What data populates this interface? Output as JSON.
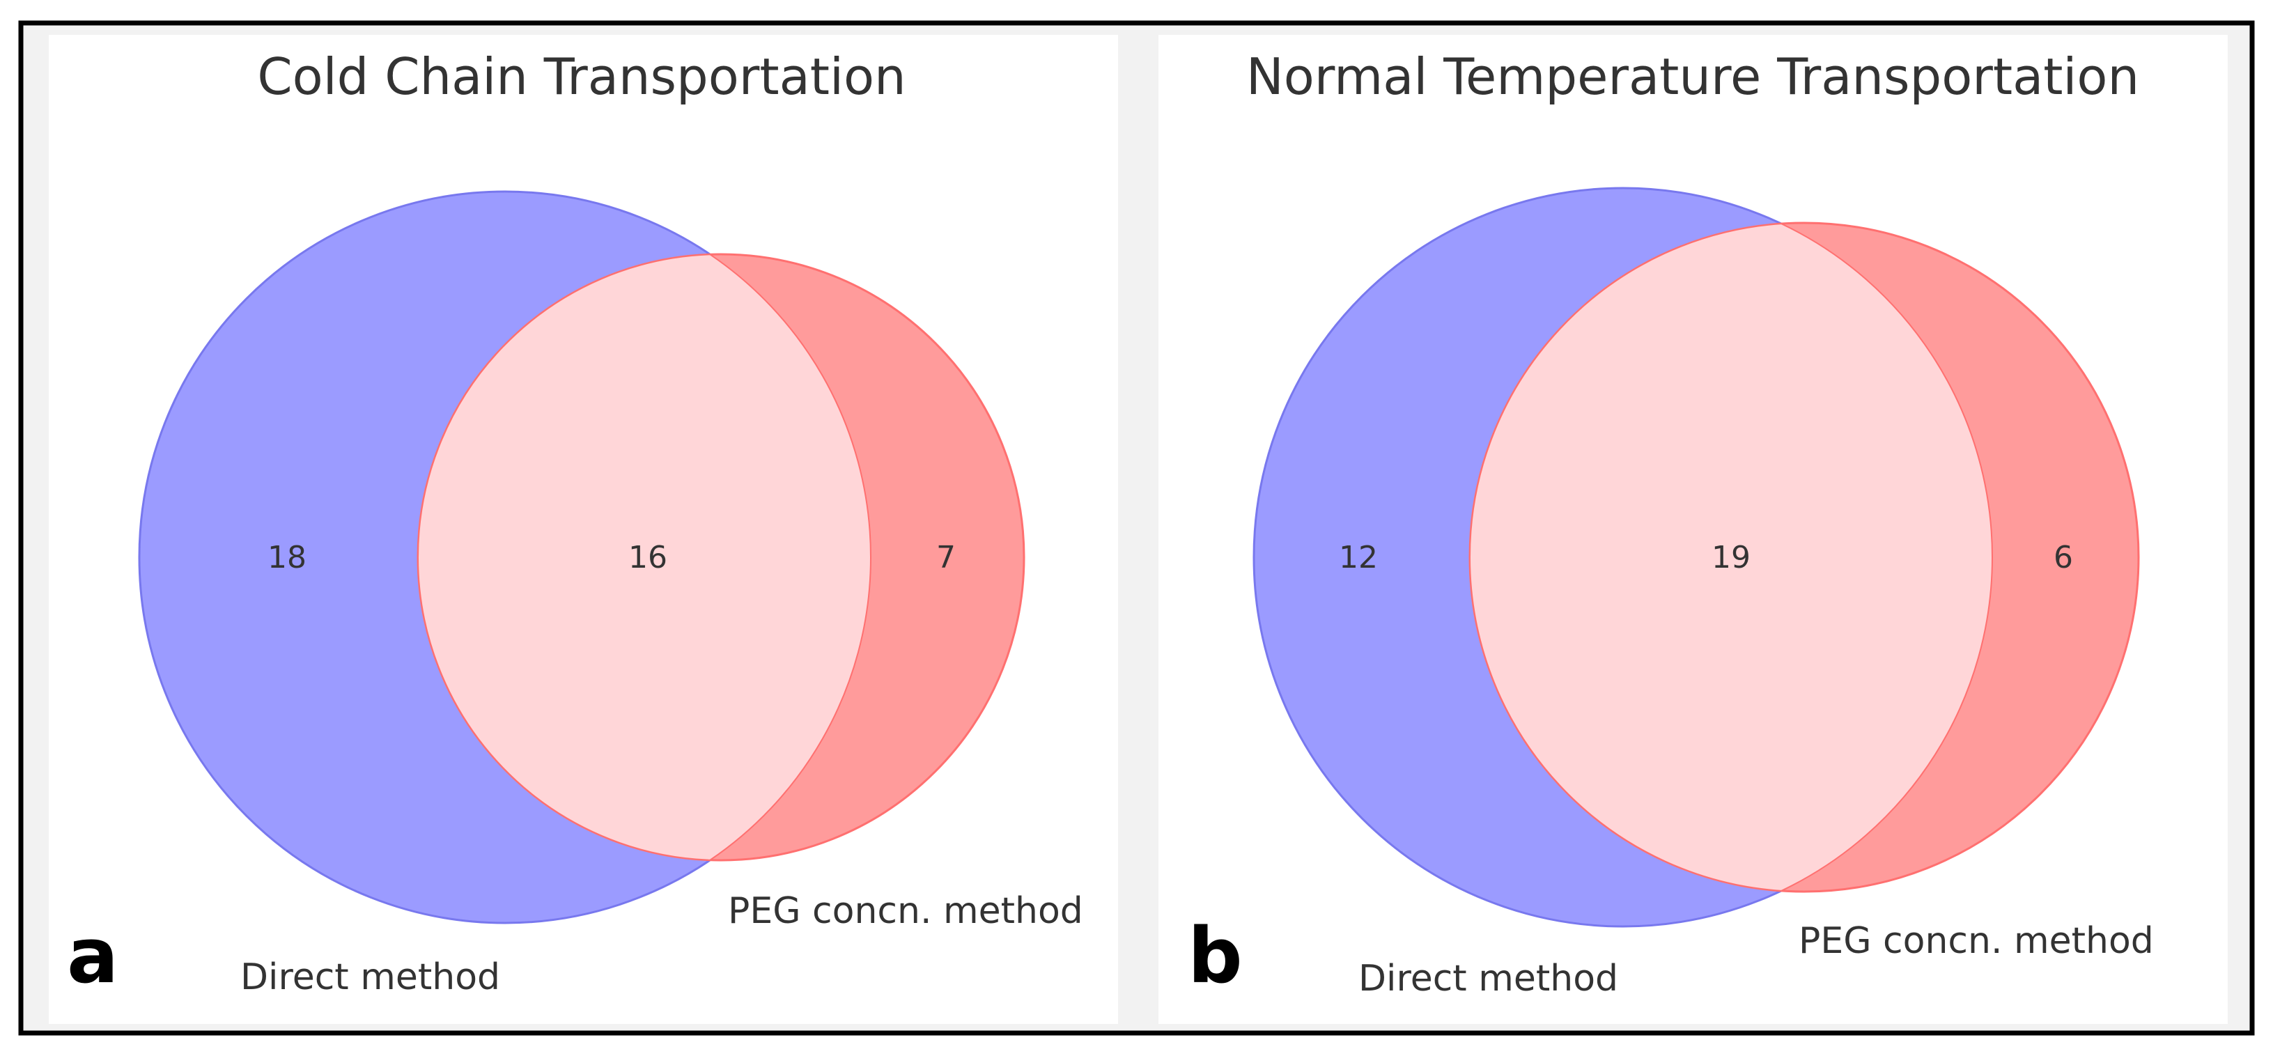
{
  "chart_data": [
    {
      "type": "venn",
      "panel": "a",
      "title": "Cold Chain Transportation",
      "sets": [
        {
          "name": "Direct method",
          "color": "#9b9bff",
          "edge": "#7878ee",
          "total": 34
        },
        {
          "name": "PEG concn. method",
          "color": "#ff9b9b",
          "edge": "#ff7070",
          "total": 23
        }
      ],
      "regions": {
        "only_a": 18,
        "intersection": 16,
        "only_b": 7
      },
      "intersection_color": "#ffd6d8"
    },
    {
      "type": "venn",
      "panel": "b",
      "title": "Normal Temperature Transportation",
      "sets": [
        {
          "name": "Direct method",
          "color": "#9b9bff",
          "edge": "#7878ee",
          "total": 31
        },
        {
          "name": "PEG concn. method",
          "color": "#ff9b9b",
          "edge": "#ff7070",
          "total": 25
        }
      ],
      "regions": {
        "only_a": 12,
        "intersection": 19,
        "only_b": 6
      },
      "intersection_color": "#ffd6d8"
    }
  ]
}
